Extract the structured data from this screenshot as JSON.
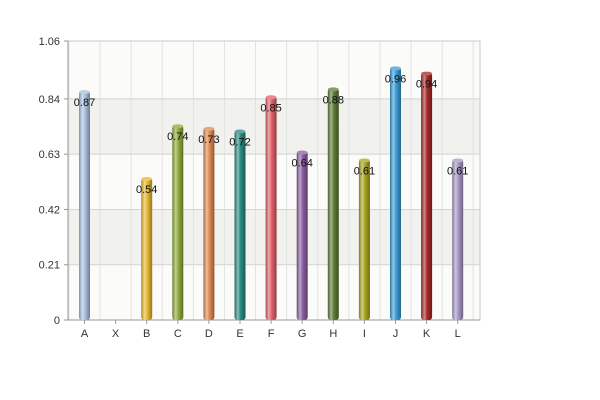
{
  "chart_data": {
    "type": "bar",
    "title": "",
    "xlabel": "",
    "ylabel": "",
    "categories": [
      "A",
      "X",
      "B",
      "C",
      "D",
      "E",
      "F",
      "G",
      "H",
      "I",
      "J",
      "K",
      "L"
    ],
    "values": [
      0.87,
      null,
      0.54,
      0.74,
      0.73,
      0.72,
      0.85,
      0.64,
      0.88,
      0.61,
      0.96,
      0.94,
      0.61
    ],
    "data_labels": [
      "0.87",
      "",
      "0.54",
      "0.74",
      "0.73",
      "0.72",
      "0.85",
      "0.64",
      "0.88",
      "0.61",
      "0.96",
      "0.94",
      "0.61"
    ],
    "ylim": [
      0,
      1.06
    ],
    "yticks": [
      0,
      0.21,
      0.42,
      0.63,
      0.84,
      1.06
    ],
    "ytick_labels": [
      "0",
      "0.21",
      "0.42",
      "0.63",
      "0.84",
      "1.06"
    ],
    "grid": true,
    "legend": "none",
    "colors": [
      "#a9c0de",
      "#cccccc",
      "#e8b830",
      "#8faa3a",
      "#e08850",
      "#2a8a80",
      "#e0606a",
      "#8a5ea0",
      "#5e7a38",
      "#a8a422",
      "#3d9cd6",
      "#a82828",
      "#a898c4"
    ]
  }
}
